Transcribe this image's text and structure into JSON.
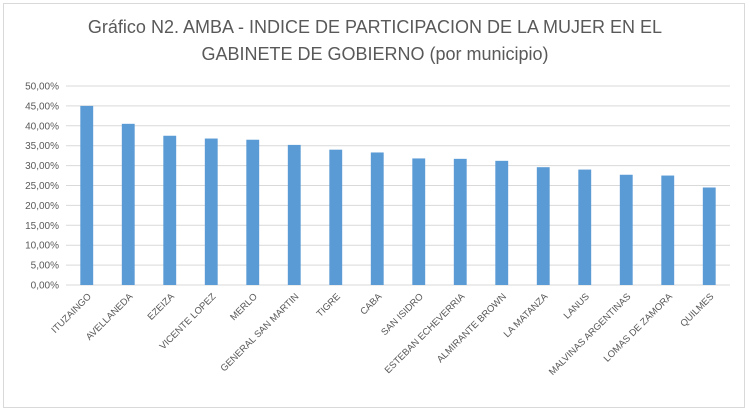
{
  "chart_data": {
    "type": "bar",
    "title_lines": [
      "Gráfico N2. AMBA - INDICE DE PARTICIPACION DE LA MUJER EN EL",
      "GABINETE DE GOBIERNO (por municipio)"
    ],
    "categories": [
      "ITUZAINGO",
      "AVELLANEDA",
      "EZEIZA",
      "VICENTE LOPEZ",
      "MERLO",
      "GENERAL SAN MARTIN",
      "TIGRE",
      "CABA",
      "SAN ISIDRO",
      "ESTEBAN ECHEVERRIA",
      "ALMIRANTE BROWN",
      "LA MATANZA",
      "LANUS",
      "MALVINAS ARGENTINAS",
      "LOMAS DE ZAMORA",
      "QUILMES"
    ],
    "values": [
      45.0,
      40.5,
      37.5,
      36.8,
      36.5,
      35.2,
      34.0,
      33.3,
      31.8,
      31.7,
      31.2,
      29.6,
      29.0,
      27.7,
      27.5,
      24.5
    ],
    "y_ticks": [
      "0,00%",
      "5,00%",
      "10,00%",
      "15,00%",
      "20,00%",
      "25,00%",
      "30,00%",
      "35,00%",
      "40,00%",
      "45,00%",
      "50,00%"
    ],
    "ylim": [
      0,
      50
    ],
    "grid": true,
    "bar_color": "#5b9bd5",
    "grid_color": "#d9d9d9"
  }
}
